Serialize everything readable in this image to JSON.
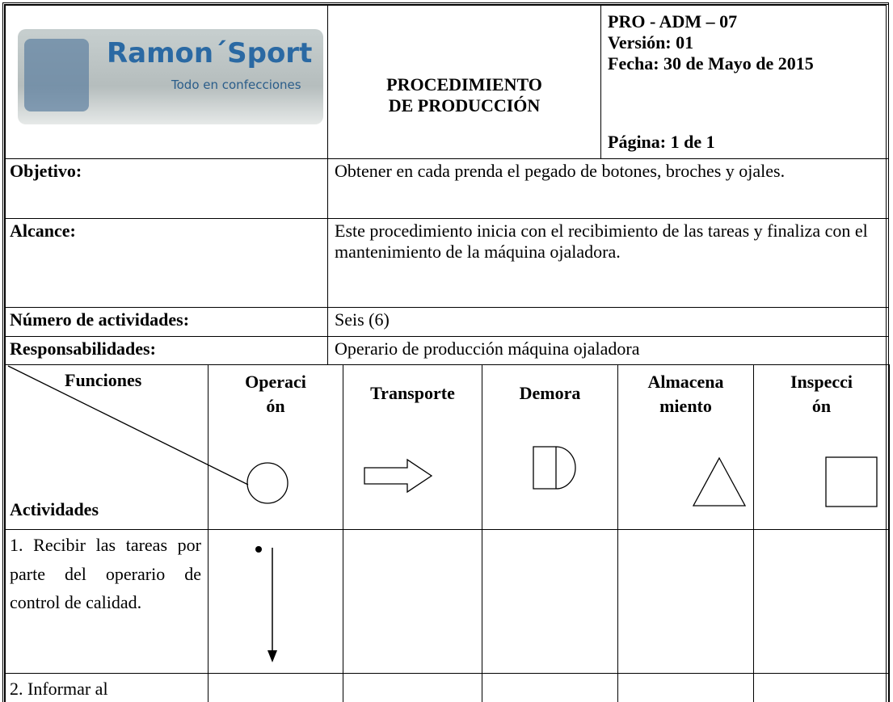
{
  "logo": {
    "brand": "Ramon´Sport",
    "tagline": "Todo en confecciones"
  },
  "header": {
    "title": [
      "PROCEDIMIENTO",
      "DE PRODUCCIÓN"
    ],
    "code": "PRO - ADM – 07",
    "version": "Versión: 01",
    "date": "Fecha: 30 de Mayo de 2015",
    "page": "Página: 1 de 1"
  },
  "rows": [
    {
      "label": "Objetivo:",
      "text": "Obtener en cada prenda el pegado de botones, broches y ojales."
    },
    {
      "label": "Alcance:",
      "text": "Este procedimiento inicia con el recibimiento de las tareas y finaliza con el mantenimiento de la máquina ojaladora."
    },
    {
      "label": "Número de actividades:",
      "text": "Seis (6)"
    },
    {
      "label": "Responsabilidades:",
      "text": "Operario de producción máquina ojaladora"
    }
  ],
  "matrix": {
    "corner_top": "Funciones",
    "corner_bottom": "Actividades",
    "columns": [
      [
        "Operaci",
        "ón"
      ],
      [
        "Transporte"
      ],
      [
        "Demora"
      ],
      [
        "Almacena",
        "miento"
      ],
      [
        "Inspecci",
        "ón"
      ]
    ],
    "activities": [
      "1. Recibir las tareas por parte del operario de control de calidad.",
      "2. Informar al"
    ]
  }
}
